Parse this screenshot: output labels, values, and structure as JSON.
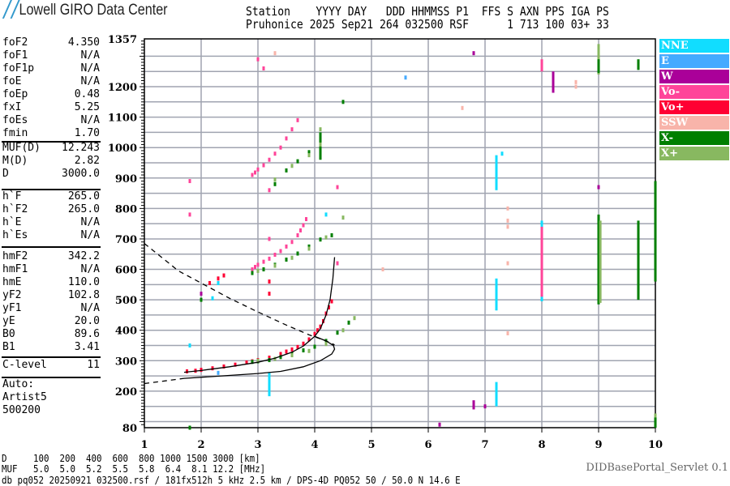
{
  "header": {
    "logo_text": "Lowell GIRO Data Center",
    "line1": "Station    YYYY DAY   DDD HHMMSS P1  FFS S AXN PPS IGA PS",
    "line2": "Pruhonice 2025 Sep21 264 032500 RSF      1 713 100 03+ 33"
  },
  "params": [
    {
      "k": "foF2",
      "v": "4.350"
    },
    {
      "k": "foF1",
      "v": "N/A"
    },
    {
      "k": "foF1p",
      "v": "N/A"
    },
    {
      "k": "foE",
      "v": "N/A"
    },
    {
      "k": "foEp",
      "v": "0.48"
    },
    {
      "k": "fxI",
      "v": "5.25"
    },
    {
      "k": "foEs",
      "v": "N/A"
    },
    {
      "k": "fmin",
      "v": "1.70"
    },
    {
      "k": "MUF(D)",
      "v": "12.243"
    },
    {
      "k": "M(D)",
      "v": "2.82"
    },
    {
      "k": "D",
      "v": "3000.0"
    },
    {
      "k": "h`F",
      "v": "265.0"
    },
    {
      "k": "h`F2",
      "v": "265.0"
    },
    {
      "k": "h`E",
      "v": "N/A"
    },
    {
      "k": "h`Es",
      "v": "N/A"
    },
    {
      "k": "hmF2",
      "v": "342.2"
    },
    {
      "k": "hmF1",
      "v": "N/A"
    },
    {
      "k": "hmE",
      "v": "110.0"
    },
    {
      "k": "yF2",
      "v": "102.8"
    },
    {
      "k": "yF1",
      "v": "N/A"
    },
    {
      "k": "yE",
      "v": "20.0"
    },
    {
      "k": "B0",
      "v": "89.6"
    },
    {
      "k": "B1",
      "v": "3.41"
    },
    {
      "k": "C-level",
      "v": "11"
    }
  ],
  "autoscale": {
    "line1": "Auto:",
    "line2": "Artist5",
    "line3": "500200"
  },
  "footer": {
    "d_row": "D     100  200  400  600  800 1000 1500 3000 [km]",
    "muf_row": "MUF   5.0  5.0  5.2  5.5  5.8  6.4  8.1 12.2 [MHz]",
    "file_line": "db pq052 20250921 032500.rsf / 181fx512h 5 kHz 2.5 km / DPS-4D PQ052 50 / 50.0 N 14.6 E",
    "servlet": "DIDBasePortal_Servlet 0.1"
  },
  "legend": [
    {
      "label": "NNE",
      "color": "#11ddff"
    },
    {
      "label": "E",
      "color": "#44aaff"
    },
    {
      "label": "W",
      "color": "#aa0099"
    },
    {
      "label": "Vo-",
      "color": "#ff4499"
    },
    {
      "label": "Vo+",
      "color": "#ff0033"
    },
    {
      "label": "SSW",
      "color": "#f8b4aa"
    },
    {
      "label": "X-",
      "color": "#007f00"
    },
    {
      "label": "X+",
      "color": "#88b860"
    }
  ],
  "chart_data": {
    "type": "scatter",
    "xlabel": "",
    "ylabel": "",
    "xlim": [
      1,
      10
    ],
    "ylim": [
      80,
      1357
    ],
    "x_ticks": [
      "1",
      "2",
      "3",
      "4",
      "5",
      "6",
      "7",
      "8",
      "9",
      "10"
    ],
    "y_ticks": [
      "1357",
      "1200",
      "1100",
      "1000",
      "900",
      "800",
      "700",
      "600",
      "500",
      "400",
      "300",
      "200",
      "80"
    ],
    "grid": true,
    "traces": [
      {
        "pol": "Vo+",
        "points": [
          [
            1.75,
            265
          ],
          [
            1.9,
            267
          ],
          [
            2.0,
            270
          ],
          [
            2.2,
            275
          ],
          [
            2.4,
            281
          ],
          [
            2.6,
            287
          ],
          [
            2.8,
            294
          ],
          [
            2.9,
            298
          ],
          [
            3.0,
            302
          ],
          [
            3.2,
            310
          ],
          [
            3.4,
            322
          ],
          [
            3.5,
            330
          ],
          [
            3.6,
            337
          ],
          [
            3.7,
            345
          ],
          [
            3.8,
            356
          ],
          [
            3.9,
            370
          ],
          [
            4.0,
            388
          ],
          [
            4.05,
            400
          ],
          [
            4.1,
            412
          ],
          [
            4.15,
            430
          ],
          [
            4.2,
            455
          ],
          [
            4.25,
            475
          ],
          [
            4.3,
            495
          ],
          [
            2.15,
            555
          ],
          [
            2.3,
            570
          ],
          [
            2.4,
            580
          ],
          [
            3.2,
            560
          ],
          [
            3.2,
            520
          ]
        ]
      },
      {
        "pol": "Vo-",
        "points": [
          [
            2.9,
            600
          ],
          [
            2.95,
            608
          ],
          [
            3.0,
            615
          ],
          [
            3.1,
            625
          ],
          [
            3.2,
            635
          ],
          [
            3.3,
            648
          ],
          [
            3.4,
            660
          ],
          [
            3.5,
            675
          ],
          [
            3.6,
            690
          ],
          [
            3.7,
            712
          ],
          [
            3.75,
            728
          ],
          [
            3.8,
            745
          ],
          [
            3.85,
            765
          ],
          [
            2.9,
            910
          ],
          [
            2.95,
            918
          ],
          [
            3.0,
            928
          ],
          [
            3.1,
            942
          ],
          [
            3.2,
            960
          ],
          [
            3.3,
            980
          ],
          [
            3.4,
            1000
          ],
          [
            3.5,
            1030
          ],
          [
            3.6,
            1060
          ],
          [
            3.7,
            1090
          ],
          [
            3.2,
            860
          ],
          [
            3.2,
            700
          ],
          [
            4.4,
            620
          ],
          [
            4.4,
            870
          ],
          [
            1.8,
            890
          ],
          [
            1.8,
            780
          ],
          [
            3.0,
            1290
          ],
          [
            3.1,
            1260
          ],
          [
            8.0,
            1270
          ]
        ]
      },
      {
        "pol": "X-",
        "points": [
          [
            2.9,
            296
          ],
          [
            3.0,
            298
          ],
          [
            3.2,
            302
          ],
          [
            3.4,
            312
          ],
          [
            3.6,
            322
          ],
          [
            3.8,
            334
          ],
          [
            4.0,
            346
          ],
          [
            4.2,
            365
          ],
          [
            4.4,
            392
          ],
          [
            4.6,
            425
          ],
          [
            2.9,
            588
          ],
          [
            3.1,
            600
          ],
          [
            3.3,
            615
          ],
          [
            3.5,
            632
          ],
          [
            3.7,
            652
          ],
          [
            3.9,
            675
          ],
          [
            4.1,
            698
          ],
          [
            4.3,
            712
          ],
          [
            3.3,
            880
          ],
          [
            3.5,
            925
          ],
          [
            3.7,
            955
          ],
          [
            3.9,
            985
          ],
          [
            4.1,
            1000
          ],
          [
            4.1,
            1040
          ],
          [
            4.5,
            1150
          ],
          [
            1.8,
            80
          ],
          [
            2.0,
            500
          ]
        ]
      },
      {
        "pol": "X+",
        "points": [
          [
            3.0,
            300
          ],
          [
            3.3,
            306
          ],
          [
            3.6,
            318
          ],
          [
            3.9,
            332
          ],
          [
            4.2,
            355
          ],
          [
            4.5,
            400
          ],
          [
            4.7,
            440
          ],
          [
            3.0,
            595
          ],
          [
            3.3,
            612
          ],
          [
            3.6,
            638
          ],
          [
            3.9,
            668
          ],
          [
            4.2,
            705
          ],
          [
            4.5,
            770
          ],
          [
            3.3,
            895
          ],
          [
            3.6,
            940
          ],
          [
            3.9,
            975
          ],
          [
            4.1,
            1010
          ],
          [
            4.1,
            1060
          ],
          [
            10.0,
            120
          ]
        ]
      },
      {
        "pol": "NNE",
        "points": [
          [
            1.8,
            350
          ],
          [
            2.2,
            505
          ],
          [
            2.3,
            555
          ],
          [
            3.2,
            190
          ],
          [
            3.2,
            250
          ],
          [
            4.2,
            780
          ],
          [
            7.3,
            980
          ]
        ]
      },
      {
        "pol": "E",
        "points": [
          [
            5.6,
            1230
          ],
          [
            2.3,
            260
          ]
        ]
      },
      {
        "pol": "W",
        "points": [
          [
            2.0,
            520
          ],
          [
            8.2,
            1200
          ],
          [
            8.2,
            1240
          ],
          [
            7.0,
            150
          ],
          [
            6.2,
            90
          ],
          [
            6.8,
            1310
          ],
          [
            9.0,
            870
          ]
        ]
      },
      {
        "pol": "SSW",
        "points": [
          [
            7.4,
            620
          ],
          [
            7.4,
            740
          ],
          [
            7.4,
            760
          ],
          [
            7.4,
            800
          ],
          [
            7.4,
            390
          ],
          [
            8.6,
            1200
          ],
          [
            8.6,
            1215
          ],
          [
            6.6,
            1130
          ],
          [
            3.3,
            1310
          ],
          [
            5.2,
            600
          ]
        ]
      }
    ],
    "vertical_spans": [
      {
        "pol": "NNE",
        "f": 7.2,
        "h": [
          860,
          975
        ]
      },
      {
        "pol": "NNE",
        "f": 7.2,
        "h": [
          465,
          570
        ]
      },
      {
        "pol": "NNE",
        "f": 7.2,
        "h": [
          150,
          230
        ]
      },
      {
        "pol": "NNE",
        "f": 8.0,
        "h": [
          495,
          760
        ]
      },
      {
        "pol": "NNE",
        "f": 3.2,
        "h": [
          195,
          260
        ]
      },
      {
        "pol": "Vo-",
        "f": 8.0,
        "h": [
          510,
          740
        ]
      },
      {
        "pol": "Vo-",
        "f": 8.0,
        "h": [
          1250,
          1290
        ]
      },
      {
        "pol": "X-",
        "f": 9.0,
        "h": [
          485,
          780
        ]
      },
      {
        "pol": "X+",
        "f": 9.03,
        "h": [
          490,
          760
        ]
      },
      {
        "pol": "X-",
        "f": 9.7,
        "h": [
          500,
          760
        ]
      },
      {
        "pol": "X-",
        "f": 10.0,
        "h": [
          560,
          890
        ]
      },
      {
        "pol": "X+",
        "f": 9.0,
        "h": [
          1240,
          1340
        ]
      },
      {
        "pol": "X-",
        "f": 9.0,
        "h": [
          1245,
          1290
        ]
      },
      {
        "pol": "X-",
        "f": 9.7,
        "h": [
          1255,
          1290
        ]
      },
      {
        "pol": "X-",
        "f": 10.0,
        "h": [
          80,
          125
        ]
      },
      {
        "pol": "W",
        "f": 6.8,
        "h": [
          140,
          170
        ]
      },
      {
        "pol": "W",
        "f": 8.2,
        "h": [
          1180,
          1250
        ]
      },
      {
        "pol": "X-",
        "f": 4.1,
        "h": [
          960,
          1050
        ]
      }
    ],
    "curves": [
      {
        "style": "solid",
        "points": [
          [
            1.7,
            262
          ],
          [
            2.0,
            268
          ],
          [
            2.5,
            280
          ],
          [
            3.0,
            295
          ],
          [
            3.3,
            308
          ],
          [
            3.6,
            328
          ],
          [
            3.8,
            348
          ],
          [
            4.0,
            380
          ],
          [
            4.1,
            405
          ],
          [
            4.2,
            450
          ],
          [
            4.27,
            500
          ],
          [
            4.32,
            570
          ],
          [
            4.35,
            640
          ]
        ]
      },
      {
        "style": "solid",
        "points": [
          [
            1.7,
            242
          ],
          [
            2.2,
            248
          ],
          [
            2.6,
            253
          ],
          [
            3.0,
            258
          ],
          [
            3.4,
            265
          ],
          [
            3.8,
            280
          ],
          [
            4.1,
            300
          ],
          [
            4.3,
            322
          ],
          [
            4.35,
            338
          ],
          [
            4.33,
            350
          ],
          [
            4.2,
            365
          ],
          [
            4.0,
            380
          ]
        ]
      },
      {
        "style": "dashed",
        "points": [
          [
            1.0,
            225
          ],
          [
            1.3,
            232
          ],
          [
            1.7,
            242
          ]
        ]
      },
      {
        "style": "dashed",
        "points": [
          [
            1.0,
            685
          ],
          [
            1.3,
            640
          ],
          [
            1.6,
            595
          ],
          [
            2.0,
            555
          ],
          [
            2.5,
            505
          ],
          [
            3.0,
            460
          ],
          [
            3.5,
            417
          ],
          [
            3.9,
            385
          ],
          [
            4.2,
            365
          ],
          [
            4.35,
            352
          ]
        ]
      }
    ]
  }
}
